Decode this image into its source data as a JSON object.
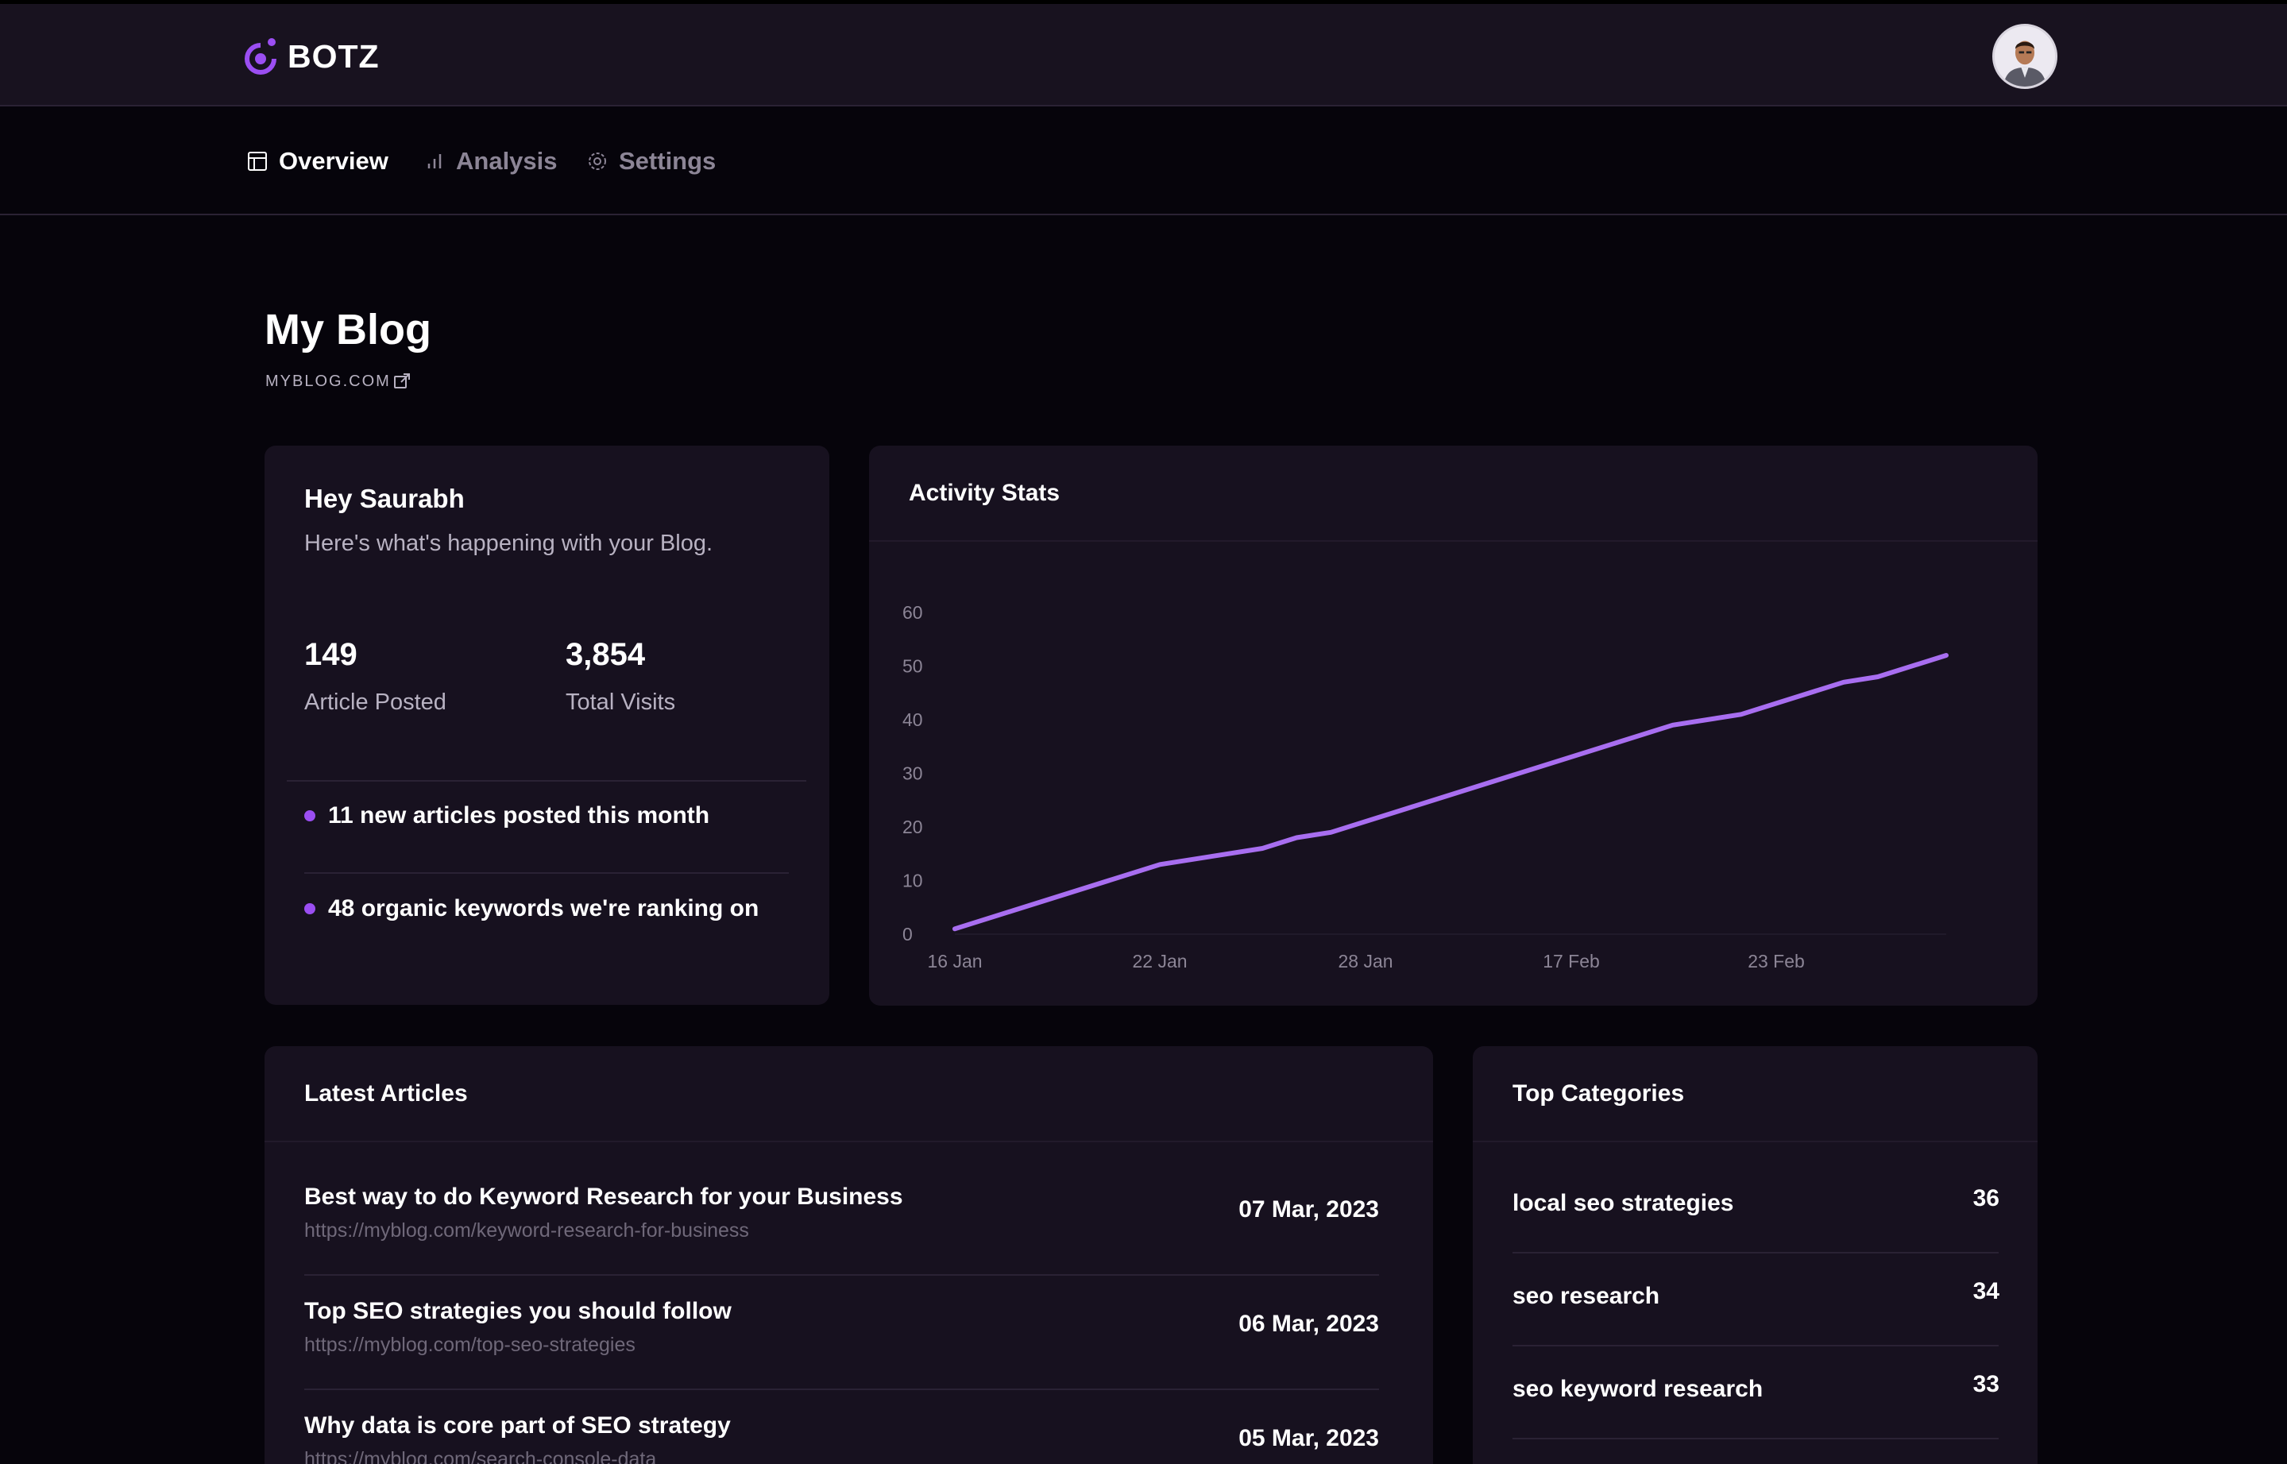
{
  "brand": {
    "name": "BOTZ",
    "accent": "#9b4ef2"
  },
  "header": {
    "avatar_icon": "user-avatar"
  },
  "nav": {
    "tabs": [
      {
        "label": "Overview",
        "icon": "layout-icon",
        "active": true
      },
      {
        "label": "Analysis",
        "icon": "bar-chart-icon",
        "active": false
      },
      {
        "label": "Settings",
        "icon": "gear-icon",
        "active": false
      }
    ]
  },
  "page": {
    "title": "My Blog",
    "site": "MYBLOG.COM",
    "site_icon": "external-link-icon"
  },
  "welcome": {
    "greeting": "Hey Saurabh",
    "subtitle": "Here's what's happening with your Blog.",
    "stats": [
      {
        "value": "149",
        "label": "Article Posted"
      },
      {
        "value": "3,854",
        "label": "Total Visits"
      }
    ],
    "notes": [
      "11 new articles posted this month",
      "48 organic keywords we're ranking on"
    ]
  },
  "activity": {
    "title": "Activity Stats"
  },
  "chart_data": {
    "type": "line",
    "title": "Activity Stats",
    "xlabel": "",
    "ylabel": "",
    "ylim": [
      0,
      60
    ],
    "yticks": [
      0,
      10,
      20,
      30,
      40,
      50,
      60
    ],
    "x_ticks": [
      "16 Jan",
      "22 Jan",
      "28 Jan",
      "17 Feb",
      "23 Feb"
    ],
    "grid": false,
    "legend": "none",
    "color": "#a86ef0",
    "series": [
      {
        "points": [
          {
            "x": 0,
            "y": 1
          },
          {
            "x": 6,
            "y": 13
          },
          {
            "x": 9,
            "y": 16
          },
          {
            "x": 10,
            "y": 18
          },
          {
            "x": 11,
            "y": 19
          },
          {
            "x": 21,
            "y": 39
          },
          {
            "x": 23,
            "y": 41
          },
          {
            "x": 26,
            "y": 47
          },
          {
            "x": 27,
            "y": 48
          },
          {
            "x": 29,
            "y": 52
          }
        ]
      }
    ]
  },
  "articles": {
    "title": "Latest Articles",
    "items": [
      {
        "title": "Best way to do Keyword Research for your Business",
        "url": "https://myblog.com/keyword-research-for-business",
        "date": "07 Mar, 2023"
      },
      {
        "title": "Top SEO strategies you should follow",
        "url": "https://myblog.com/top-seo-strategies",
        "date": "06 Mar, 2023"
      },
      {
        "title": "Why data is core part of SEO strategy",
        "url": "https://myblog.com/search-console-data",
        "date": "05 Mar, 2023"
      }
    ]
  },
  "categories": {
    "title": "Top Categories",
    "items": [
      {
        "name": "local seo strategies",
        "count": "36"
      },
      {
        "name": "seo research",
        "count": "34"
      },
      {
        "name": "seo keyword research",
        "count": "33"
      }
    ]
  }
}
